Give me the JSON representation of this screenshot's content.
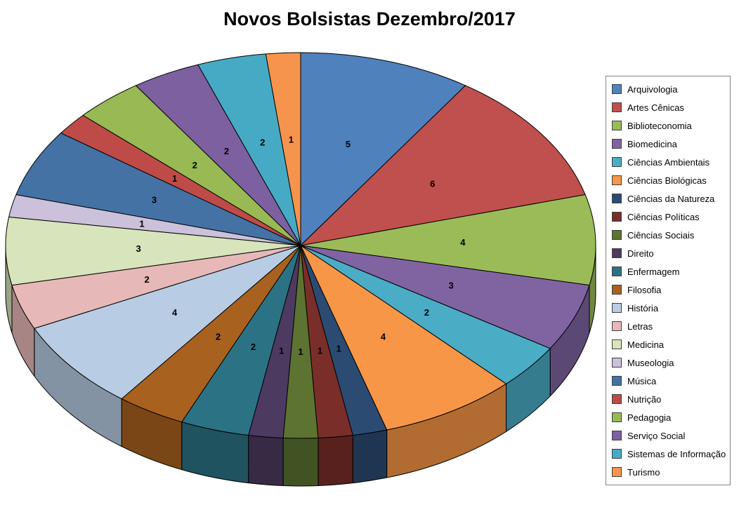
{
  "chart_data": {
    "type": "pie",
    "style": "3d-pie",
    "title": "Novos Bolsistas Dezembro/2017",
    "legend_position": "right",
    "data_labels": "values",
    "start_angle_deg": 0,
    "total": 53,
    "categories": [
      "Arquivologia",
      "Artes Cênicas",
      "Biblioteconomia",
      "Biomedicina",
      "Ciências Ambientais",
      "Ciências Biológicas",
      "Ciências da Natureza",
      "Ciências Políticas",
      "Ciências Sociais",
      "Direito",
      "Enfermagem",
      "Filosofia",
      "História",
      "Letras",
      "Medicina",
      "Museologia",
      "Música",
      "Nutrição",
      "Pedagogia",
      "Serviço Social",
      "Sistemas de Informação",
      "Turismo"
    ],
    "values": [
      5,
      6,
      4,
      3,
      2,
      4,
      1,
      1,
      1,
      1,
      2,
      2,
      4,
      2,
      3,
      1,
      3,
      1,
      2,
      2,
      2,
      1
    ],
    "colors": [
      "#4F81BD",
      "#C0504D",
      "#9BBB59",
      "#8064A2",
      "#4BACC6",
      "#F79646",
      "#2B4B72",
      "#7A2E2A",
      "#5C7331",
      "#4C3A60",
      "#2B7384",
      "#A9611F",
      "#B8CCE4",
      "#E6B9B8",
      "#D7E4BC",
      "#CCC1DA",
      "#4472A4",
      "#BE4B48",
      "#98B954",
      "#7D60A0",
      "#46AAC5",
      "#F6944D"
    ],
    "background_color": "#FFFFFF",
    "legend_border_color": "#848484"
  }
}
